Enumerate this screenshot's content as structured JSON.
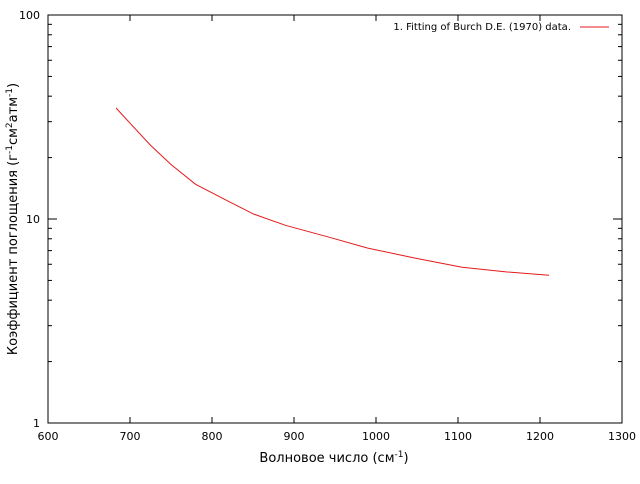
{
  "chart_data": {
    "type": "line",
    "xlabel": {
      "text": "Волновое число (см",
      "sup": "-1",
      "suffix": ")"
    },
    "ylabel": {
      "parts": [
        {
          "text": "Коэффициент поглощения (г",
          "sup": false
        },
        {
          "text": "-1",
          "sup": true
        },
        {
          "text": "см",
          "sup": false
        },
        {
          "text": "2",
          "sup": true
        },
        {
          "text": "атм",
          "sup": false
        },
        {
          "text": "-1",
          "sup": true
        },
        {
          "text": ")",
          "sup": false
        }
      ]
    },
    "xlim": [
      600,
      1300
    ],
    "ylim": [
      1,
      100
    ],
    "yscale": "log",
    "xticks": [
      600,
      700,
      800,
      900,
      1000,
      1100,
      1200,
      1300
    ],
    "xtick_labels": [
      "600",
      "700",
      "800",
      "900",
      "1000",
      "1100",
      "1200",
      "1300"
    ],
    "yticks": [
      1,
      10,
      100
    ],
    "ytick_labels": [
      "1",
      "10",
      "100"
    ],
    "grid": false,
    "legend_position": "top-right",
    "series": [
      {
        "name": "1. Fitting of Burch D.E. (1970) data.",
        "color": "#e41a1c",
        "x": [
          683,
          700,
          725,
          750,
          780,
          815,
          850,
          890,
          940,
          990,
          1050,
          1105,
          1160,
          1211
        ],
        "y": [
          35,
          29.5,
          23.0,
          18.5,
          14.8,
          12.5,
          10.6,
          9.3,
          8.2,
          7.2,
          6.4,
          5.8,
          5.5,
          5.3
        ]
      }
    ]
  }
}
